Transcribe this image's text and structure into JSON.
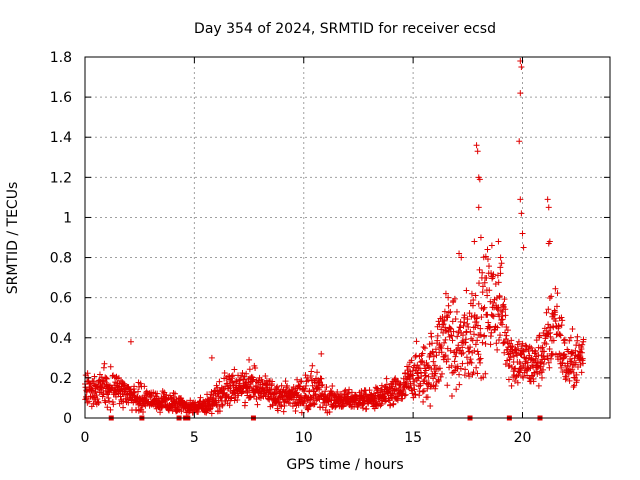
{
  "chart_data": {
    "type": "scatter",
    "title": "Day 354 of 2024, SRMTID for receiver ecsd",
    "xlabel": "GPS time / hours",
    "ylabel": "SRMTID / TECUs",
    "xlim": [
      0,
      24
    ],
    "ylim": [
      0,
      1.8
    ],
    "grid": true,
    "marker": "+",
    "color": "#e00000",
    "x_ticks": [
      0,
      5,
      10,
      15,
      20
    ],
    "x_tick_labels": [
      "0",
      "5",
      "10",
      "15",
      "20"
    ],
    "y_ticks": [
      0,
      0.2,
      0.4,
      0.6,
      0.8,
      1.0,
      1.2,
      1.4,
      1.6,
      1.8
    ],
    "y_tick_labels": [
      "0",
      "0.2",
      "0.4",
      "0.6",
      "0.8",
      "1",
      "1.2",
      "1.4",
      "1.6",
      "1.8"
    ],
    "envelope": {
      "description": "approximate local mean and spread of SRMTID values vs time (hours)",
      "x": [
        0.0,
        0.5,
        1.0,
        1.5,
        2.0,
        2.5,
        3.0,
        3.5,
        4.0,
        4.5,
        5.0,
        5.5,
        6.0,
        6.5,
        7.0,
        7.5,
        8.0,
        8.5,
        9.0,
        9.5,
        10.0,
        10.5,
        11.0,
        11.5,
        12.0,
        12.5,
        13.0,
        13.5,
        14.0,
        14.5,
        15.0,
        15.5,
        16.0,
        16.5,
        17.0,
        17.5,
        18.0,
        18.5,
        19.0,
        19.5,
        20.0,
        20.5,
        21.0,
        21.5,
        22.0,
        22.5,
        22.8
      ],
      "mean": [
        0.16,
        0.13,
        0.17,
        0.14,
        0.12,
        0.1,
        0.09,
        0.08,
        0.07,
        0.06,
        0.05,
        0.06,
        0.1,
        0.13,
        0.16,
        0.17,
        0.14,
        0.12,
        0.11,
        0.11,
        0.12,
        0.14,
        0.1,
        0.09,
        0.09,
        0.09,
        0.09,
        0.1,
        0.12,
        0.13,
        0.22,
        0.22,
        0.28,
        0.42,
        0.33,
        0.38,
        0.5,
        0.56,
        0.55,
        0.3,
        0.28,
        0.26,
        0.33,
        0.5,
        0.26,
        0.29,
        0.32
      ],
      "spread": [
        0.06,
        0.05,
        0.06,
        0.05,
        0.04,
        0.04,
        0.03,
        0.03,
        0.03,
        0.02,
        0.02,
        0.03,
        0.05,
        0.06,
        0.06,
        0.05,
        0.05,
        0.04,
        0.04,
        0.04,
        0.06,
        0.07,
        0.04,
        0.03,
        0.03,
        0.03,
        0.03,
        0.04,
        0.05,
        0.05,
        0.08,
        0.1,
        0.12,
        0.16,
        0.14,
        0.16,
        0.18,
        0.16,
        0.15,
        0.1,
        0.08,
        0.08,
        0.1,
        0.16,
        0.08,
        0.09,
        0.1
      ]
    },
    "spikes": [
      {
        "x": 17.9,
        "y": 1.36
      },
      {
        "x": 17.95,
        "y": 1.33
      },
      {
        "x": 18.0,
        "y": 1.2
      },
      {
        "x": 18.05,
        "y": 1.19
      },
      {
        "x": 18.0,
        "y": 1.05
      },
      {
        "x": 19.9,
        "y": 1.78
      },
      {
        "x": 19.95,
        "y": 1.75
      },
      {
        "x": 19.9,
        "y": 1.62
      },
      {
        "x": 19.85,
        "y": 1.38
      },
      {
        "x": 19.9,
        "y": 1.09
      },
      {
        "x": 19.95,
        "y": 1.02
      },
      {
        "x": 20.0,
        "y": 0.92
      },
      {
        "x": 20.05,
        "y": 0.85
      },
      {
        "x": 21.15,
        "y": 1.09
      },
      {
        "x": 21.2,
        "y": 1.05
      },
      {
        "x": 21.25,
        "y": 0.88
      },
      {
        "x": 21.2,
        "y": 0.87
      },
      {
        "x": 17.1,
        "y": 0.82
      },
      {
        "x": 17.2,
        "y": 0.8
      },
      {
        "x": 17.8,
        "y": 0.88
      },
      {
        "x": 18.1,
        "y": 0.9
      },
      {
        "x": 18.4,
        "y": 0.84
      },
      {
        "x": 18.6,
        "y": 0.86
      },
      {
        "x": 18.9,
        "y": 0.88
      },
      {
        "x": 19.0,
        "y": 0.8
      },
      {
        "x": 16.5,
        "y": 0.62
      },
      {
        "x": 16.6,
        "y": 0.6
      },
      {
        "x": 7.5,
        "y": 0.29
      },
      {
        "x": 10.8,
        "y": 0.32
      },
      {
        "x": 5.8,
        "y": 0.3
      },
      {
        "x": 2.1,
        "y": 0.38
      }
    ],
    "bottom_markers_x": [
      1.2,
      2.6,
      4.3,
      4.6,
      4.7,
      7.7,
      17.6,
      19.4,
      20.8
    ]
  }
}
